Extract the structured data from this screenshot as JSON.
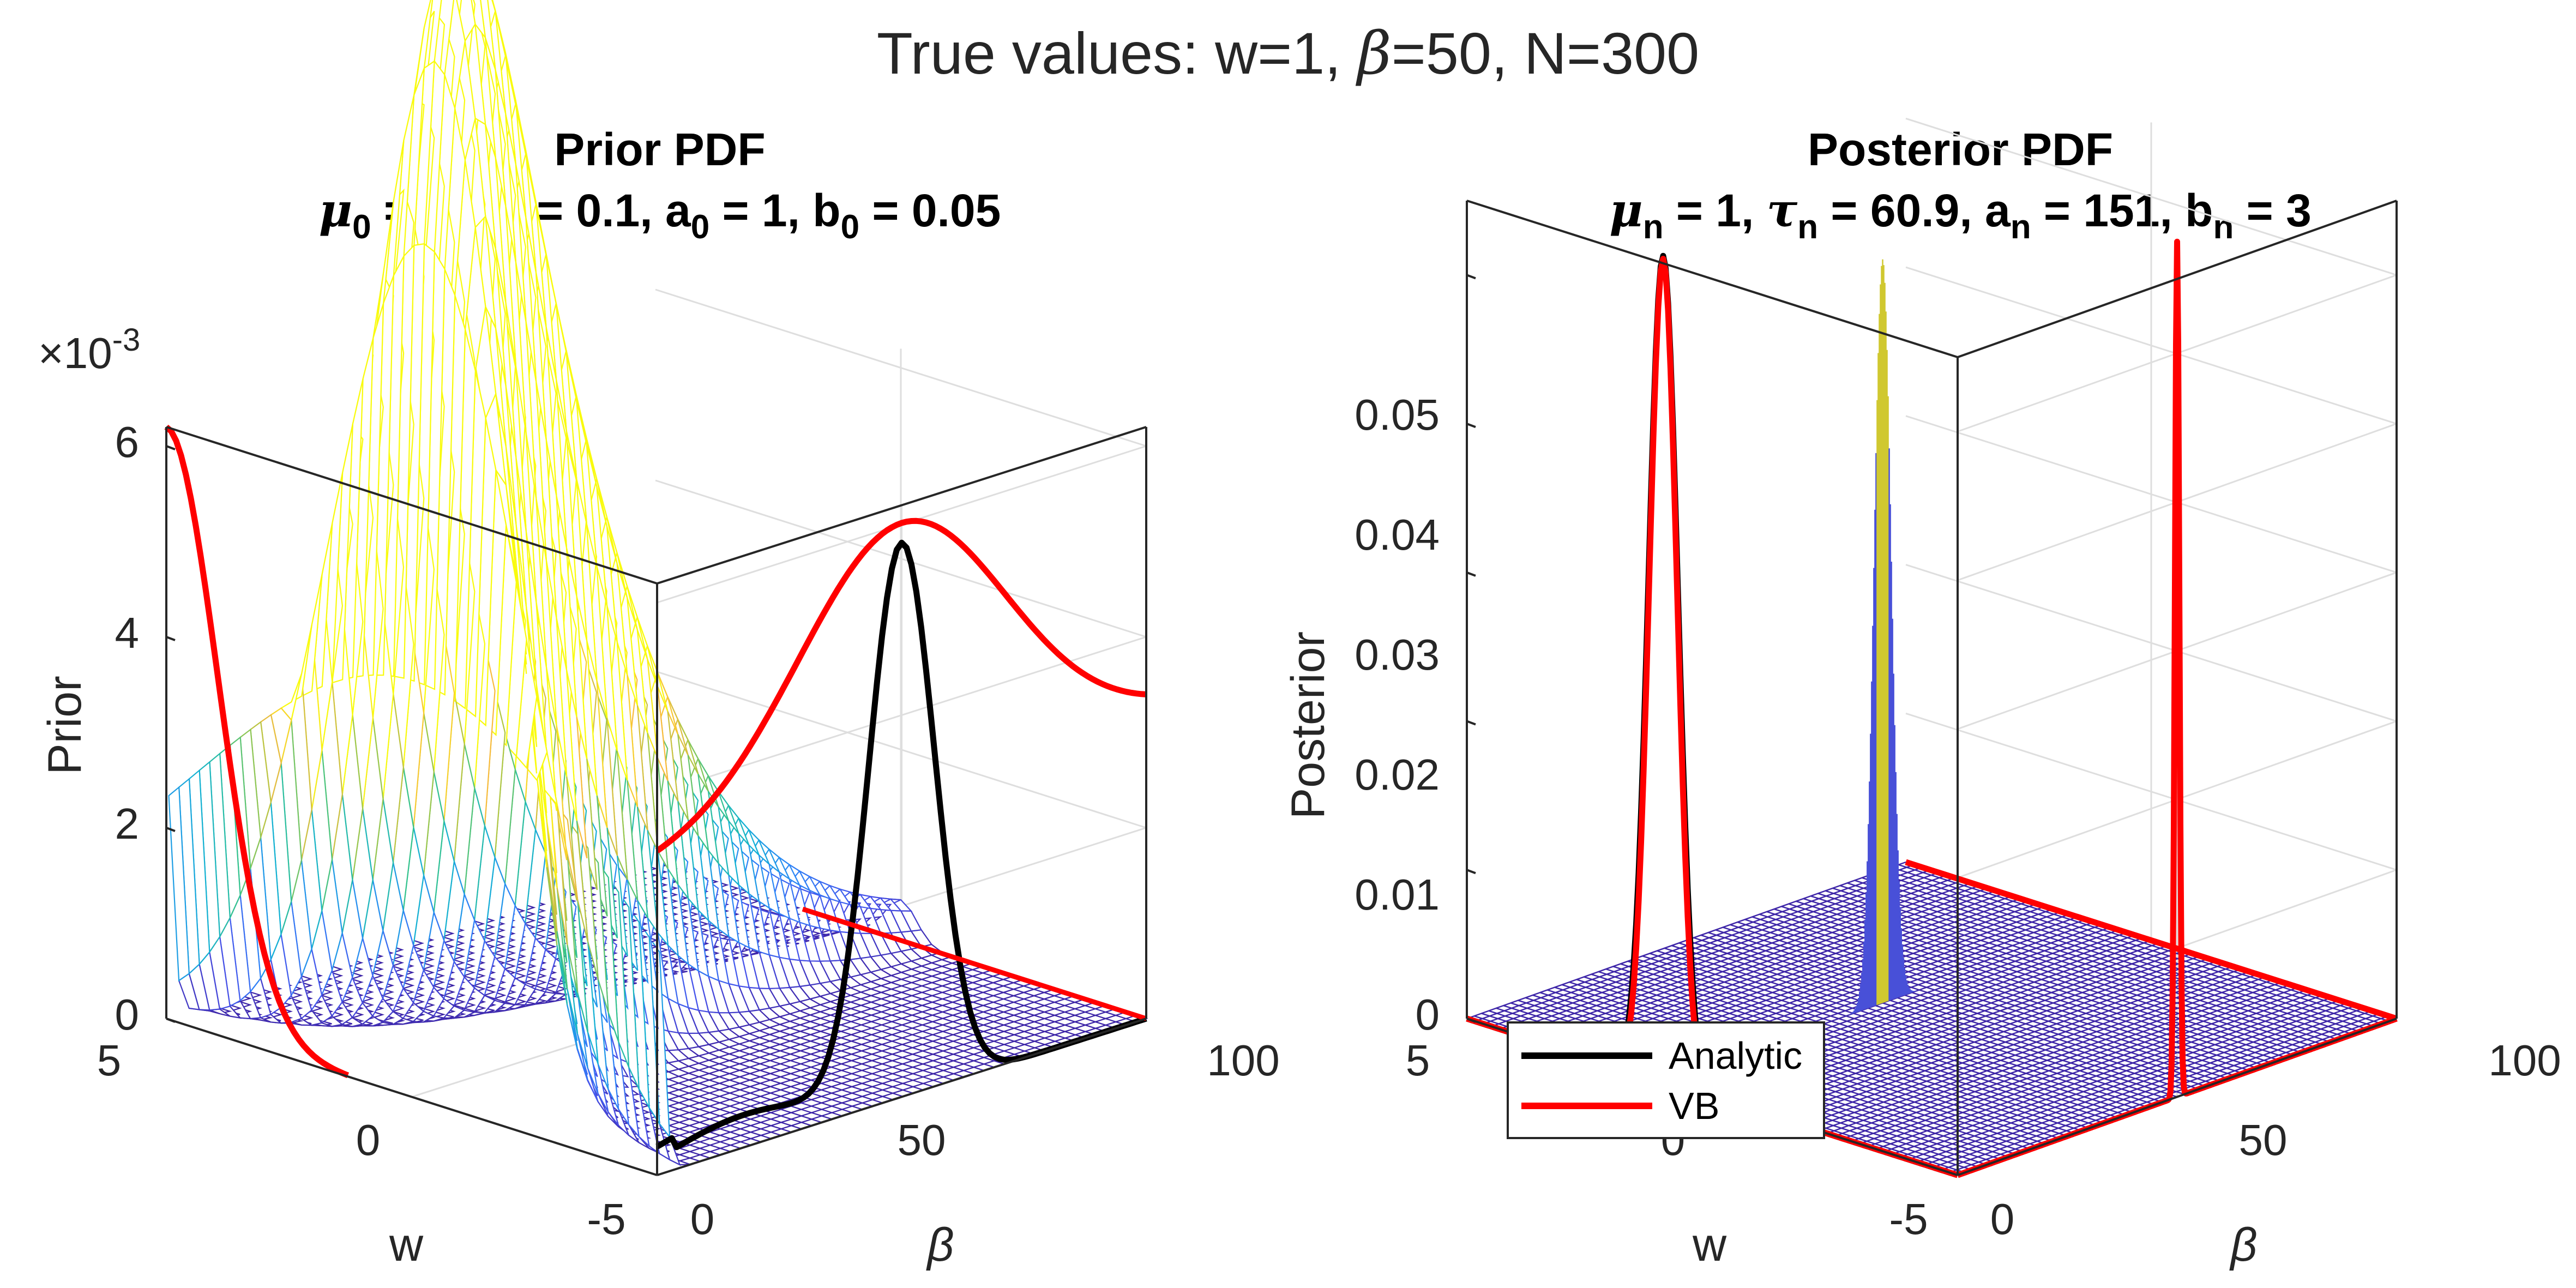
{
  "figure": {
    "suptitle_prefix": "True values: w=1, ",
    "suptitle_beta": "β",
    "suptitle_suffix": "=50, N=300"
  },
  "chart_data": [
    {
      "type": "surface",
      "title_line1": "Prior PDF",
      "title_line2": {
        "mu_sym": "μ",
        "mu_sub": "0",
        "mu_rest": " = 0, ",
        "tau_sym": "τ",
        "tau_sub": "0",
        "tau_rest": " = 0.1,   a",
        "a_sub": "0",
        "a_rest": " = 1, b",
        "b_sub": "0",
        "b_rest": " = 0.05"
      },
      "xlabel": "w",
      "ylabel": "β",
      "zlabel": "Prior",
      "z_multiplier": "×10",
      "z_multiplier_exp": "-3",
      "xlim": [
        -5,
        5
      ],
      "ylim": [
        0,
        100
      ],
      "zlim": [
        0,
        0.0062
      ],
      "x_ticks": [
        "5",
        "0",
        "-5"
      ],
      "y_ticks": [
        "0",
        "50",
        "100"
      ],
      "z_ticks": [
        "0",
        "2",
        "4",
        "6"
      ],
      "params": {
        "mu0": 0,
        "tau0": 0.1,
        "a0": 1,
        "b0": 0.05
      },
      "series": [
        {
          "color": "#000000",
          "values": "marginal p(β) projected on w=-5 wall, peak at β≈50"
        },
        {
          "color": "#ff0000",
          "values": "VB factors projected on walls"
        }
      ],
      "grid": true
    },
    {
      "type": "surface",
      "title_line1": "Posterior PDF",
      "title_line2": {
        "mu_sym": "μ",
        "mu_sub": "n",
        "mu_rest": " = 1, ",
        "tau_sym": "τ",
        "tau_sub": "n",
        "tau_rest": " = 60.9,   a",
        "a_sub": "n",
        "a_rest": " = 151, b",
        "b_sub": "n",
        "b_rest": " = 3"
      },
      "xlabel": "w",
      "ylabel": "β",
      "zlabel": "Posterior",
      "xlim": [
        -5,
        5
      ],
      "ylim": [
        0,
        100
      ],
      "zlim": [
        0,
        0.055
      ],
      "x_ticks": [
        "5",
        "0",
        "-5"
      ],
      "y_ticks": [
        "0",
        "50",
        "100"
      ],
      "z_ticks": [
        "0",
        "0.01",
        "0.02",
        "0.03",
        "0.04",
        "0.05"
      ],
      "params": {
        "mun": 1,
        "taun": 60.9,
        "an": 151,
        "bn": 3
      },
      "legend": {
        "placement": "bottom-left",
        "entries": [
          {
            "label": "Analytic",
            "color": "#000000"
          },
          {
            "label": "VB",
            "color": "#ff0000"
          }
        ]
      },
      "grid": true
    }
  ]
}
